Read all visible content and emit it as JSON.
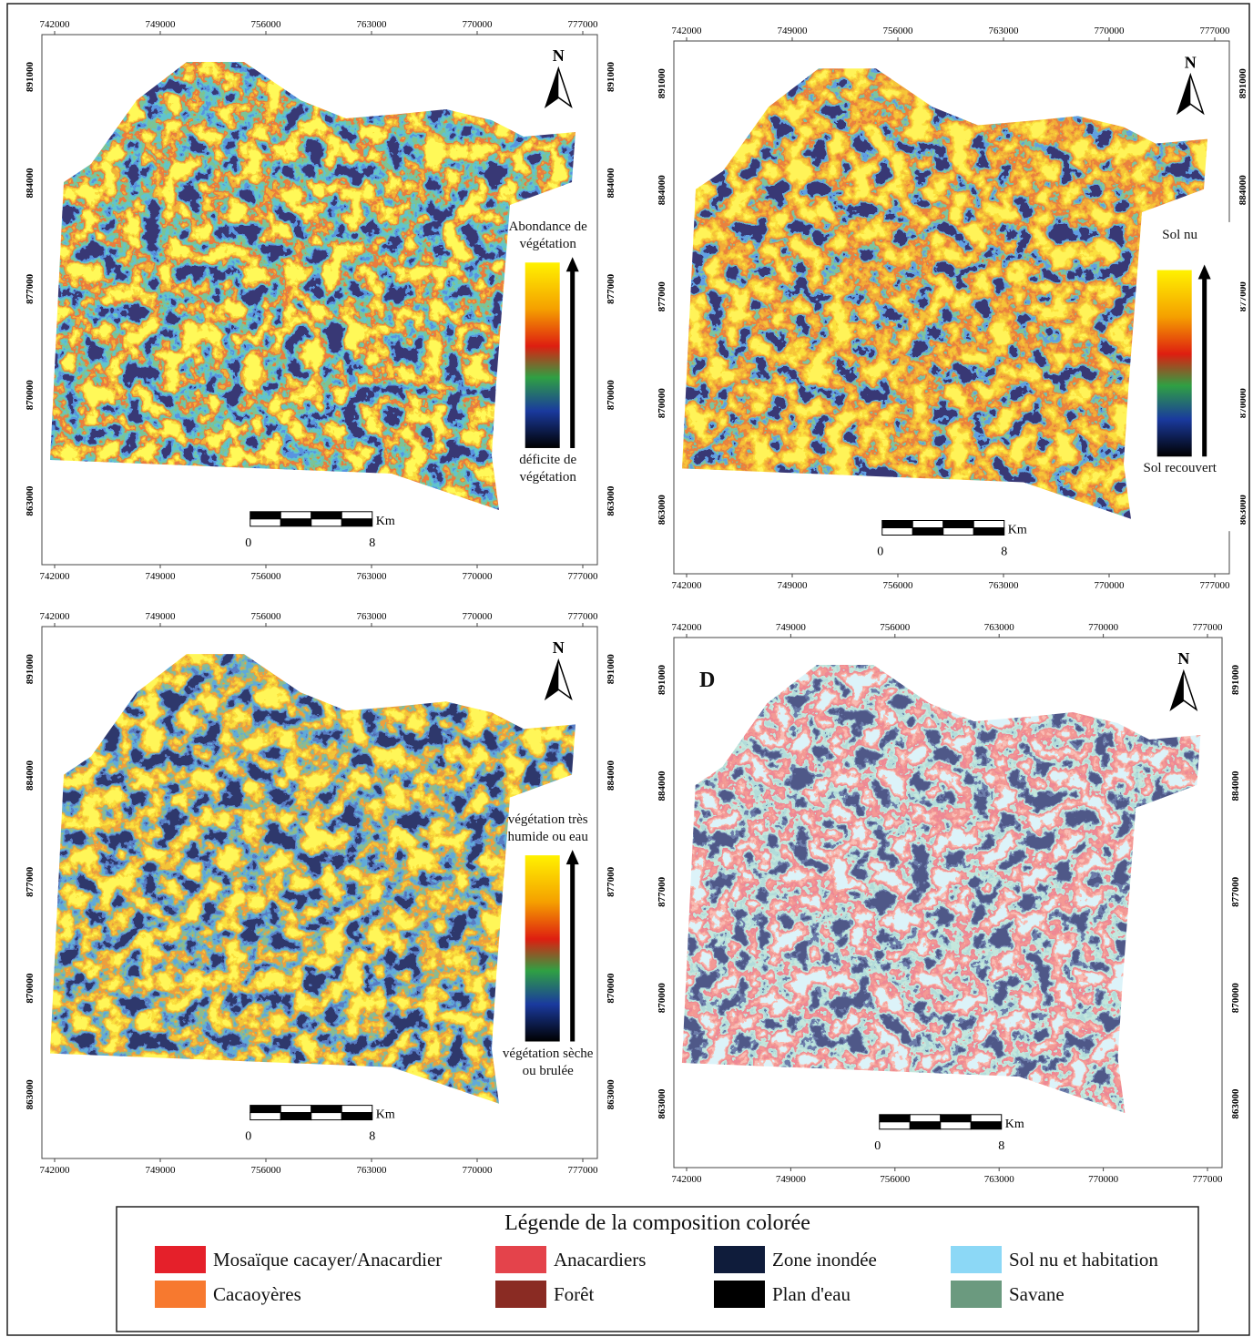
{
  "axes": {
    "x_labels": [
      "742000",
      "749000",
      "756000",
      "763000",
      "770000",
      "777000"
    ],
    "y_labels": [
      "891000",
      "884000",
      "877000",
      "870000",
      "863000"
    ]
  },
  "maps": [
    {
      "legend": {
        "top": "Abondance de végétation",
        "bottom": "déficite de végétation"
      }
    },
    {
      "legend": {
        "top": "Sol nu",
        "bottom": "Sol recouvert"
      }
    },
    {
      "legend": {
        "top": "végétation très humide ou eau",
        "bottom": "végétation sèche ou brulée"
      }
    },
    {
      "label": "D"
    }
  ],
  "north": "N",
  "scale": {
    "unit": "Km",
    "ticks": [
      "0",
      "8"
    ]
  },
  "legend": {
    "title": "Légende de la composition colorée",
    "items": [
      {
        "label": "Mosaïque cacayer/Anacardier",
        "color": "#e5202a"
      },
      {
        "label": "Cacaoyères",
        "color": "#f7792f"
      },
      {
        "label": "Anacardiers",
        "color": "#e4434b"
      },
      {
        "label": "Forêt",
        "color": "#8a2b23"
      },
      {
        "label": "Zone inondée",
        "color": "#0f1c3b"
      },
      {
        "label": "Plan d'eau",
        "color": "#000000"
      },
      {
        "label": "Sol nu et habitation",
        "color": "#8cd8f6"
      },
      {
        "label": "Savane",
        "color": "#6b9a7f"
      }
    ]
  }
}
